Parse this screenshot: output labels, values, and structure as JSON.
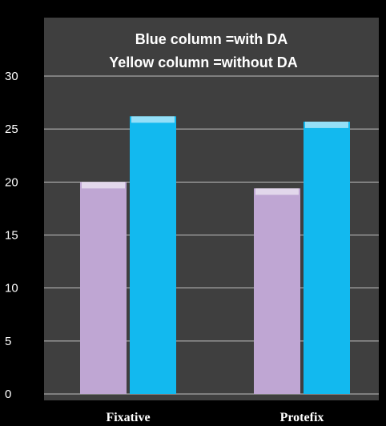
{
  "chart_data": {
    "type": "bar",
    "title": "Blue column =with DA",
    "subtitle": "Yellow column =without DA",
    "xlabel": "",
    "ylabel": "",
    "categories": [
      "Fixative",
      "Protefix"
    ],
    "series": [
      {
        "values": [
          20,
          19.4
        ],
        "color": "#bfa6d3"
      },
      {
        "values": [
          26.2,
          25.7
        ],
        "color": "#12b9ef"
      }
    ],
    "ylim": [
      0,
      30
    ],
    "yticks": [
      "0",
      "5",
      "10",
      "15",
      "20",
      "25",
      "30"
    ],
    "grid": true,
    "legend": "none",
    "colors": {
      "background": "#000000",
      "plot_area": "#3f3f3f",
      "gridline": "#bfbfbf",
      "text": "#ffffff"
    }
  }
}
